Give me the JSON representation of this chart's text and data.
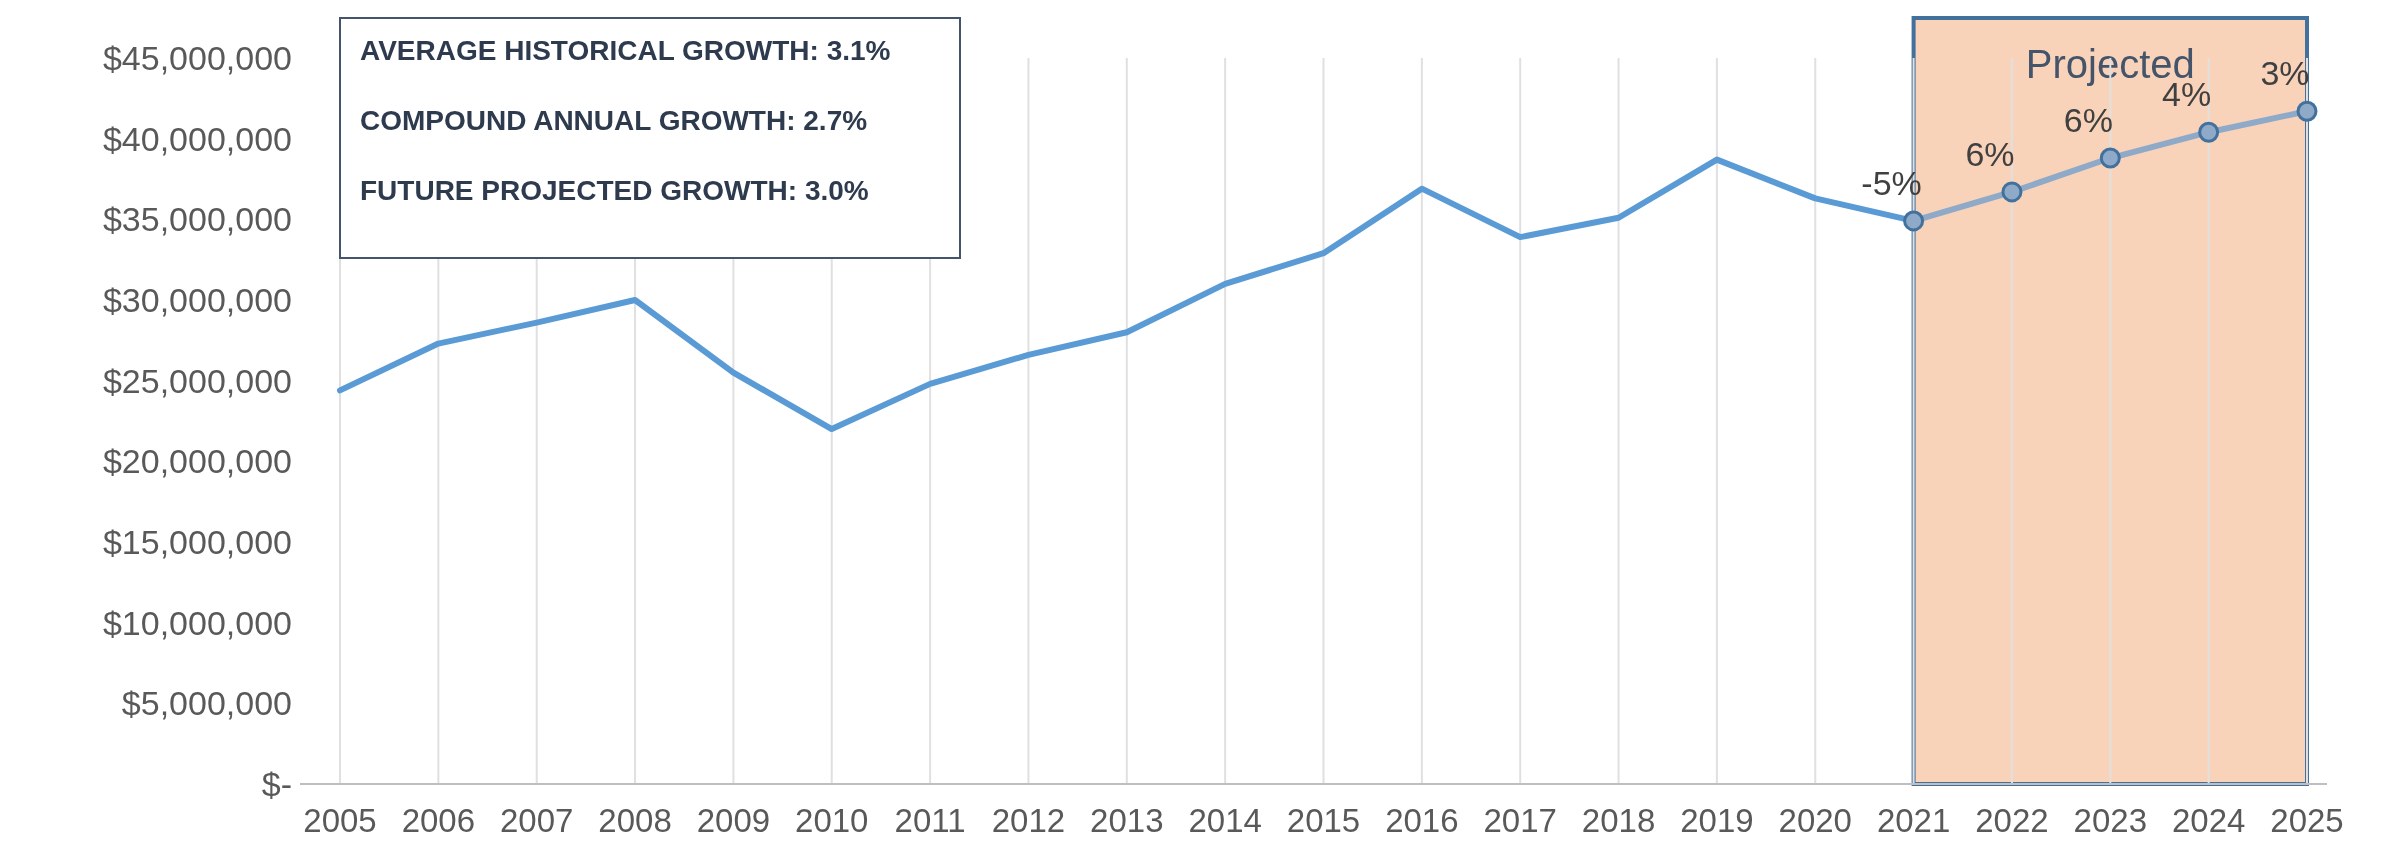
{
  "chart_data": {
    "type": "line",
    "categories": [
      "2005",
      "2006",
      "2007",
      "2008",
      "2009",
      "2010",
      "2011",
      "2012",
      "2013",
      "2014",
      "2015",
      "2016",
      "2017",
      "2018",
      "2019",
      "2020",
      "2021",
      "2022",
      "2023",
      "2024",
      "2025"
    ],
    "series": [
      {
        "color": "#5b9bd5",
        "marker": "none",
        "values": [
          24400000,
          27300000,
          28600000,
          30000000,
          25500000,
          22000000,
          24800000,
          26600000,
          28000000,
          31000000,
          32900000,
          36900000,
          33900000,
          35100000,
          38700000,
          36300000,
          34900000,
          null,
          null,
          null,
          null
        ]
      },
      {
        "color": "#8eaac8",
        "marker": "circle",
        "values": [
          null,
          null,
          null,
          null,
          null,
          null,
          null,
          null,
          null,
          null,
          null,
          null,
          null,
          null,
          null,
          null,
          34900000,
          36700000,
          38800000,
          40400000,
          41700000
        ]
      }
    ],
    "ylim": [
      0,
      45000000
    ],
    "yticks": [
      {
        "value": 0,
        "label": "$-"
      },
      {
        "value": 5000000,
        "label": "$5,000,000"
      },
      {
        "value": 10000000,
        "label": "$10,000,000"
      },
      {
        "value": 15000000,
        "label": "$15,000,000"
      },
      {
        "value": 20000000,
        "label": "$20,000,000"
      },
      {
        "value": 25000000,
        "label": "$25,000,000"
      },
      {
        "value": 30000000,
        "label": "$30,000,000"
      },
      {
        "value": 35000000,
        "label": "$35,000,000"
      },
      {
        "value": 40000000,
        "label": "$40,000,000"
      },
      {
        "value": 45000000,
        "label": "$45,000,000"
      }
    ],
    "bands": [
      {
        "axis": "x",
        "from": "2021",
        "to": "2025",
        "label": "Projected",
        "color": "#f8cbad"
      }
    ],
    "annotations": [
      "AVERAGE HISTORICAL GROWTH: 3.1%",
      "COMPOUND ANNUAL GROWTH: 2.7%",
      "FUTURE PROJECTED GROWTH: 3.0%",
      {
        "text": "-5%",
        "x": "2021",
        "y": 34900000
      },
      {
        "text": "6%",
        "x": "2022",
        "y": 36700000
      },
      {
        "text": "6%",
        "x": "2023",
        "y": 38800000
      },
      {
        "text": "4%",
        "x": "2024",
        "y": 40400000
      },
      {
        "text": "3%",
        "x": "2025",
        "y": 41700000
      }
    ],
    "grid": "x"
  }
}
